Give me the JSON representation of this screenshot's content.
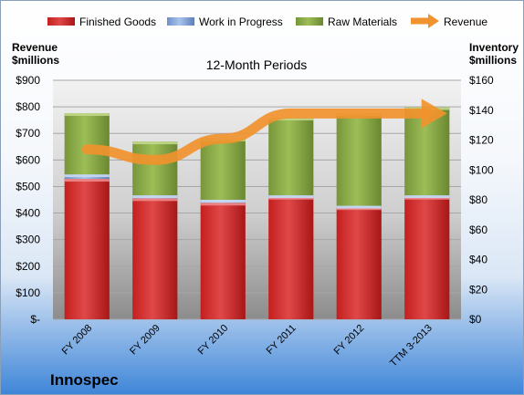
{
  "chart_data": {
    "type": "bar",
    "stacked": true,
    "title": "12-Month Periods",
    "brand": "Innospec",
    "categories": [
      "FY 2008",
      "FY 2009",
      "FY 2010",
      "FY 2011",
      "FY 2012",
      "TTM 3-2013"
    ],
    "left_axis": {
      "label_lines": [
        "Revenue",
        "$millions"
      ],
      "ticks": [
        "$-",
        "$100",
        "$200",
        "$300",
        "$400",
        "$500",
        "$600",
        "$700",
        "$800",
        "$900"
      ],
      "ylim": [
        0,
        900
      ]
    },
    "right_axis": {
      "label_lines": [
        "Inventory",
        "$millions"
      ],
      "ticks": [
        "$0",
        "$20",
        "$40",
        "$60",
        "$80",
        "$100",
        "$120",
        "$140",
        "$160"
      ],
      "ylim": [
        0,
        160
      ]
    },
    "series": [
      {
        "name": "Finished Goods",
        "axis": "right",
        "color": "#d63a3a",
        "values": [
          94,
          81,
          78,
          82,
          75,
          82
        ]
      },
      {
        "name": "Work in Progress",
        "axis": "right",
        "color": "#8fb0e0",
        "values": [
          3,
          2,
          2,
          1,
          1,
          1
        ]
      },
      {
        "name": "Raw Materials",
        "axis": "right",
        "color": "#8fb04a",
        "values": [
          41,
          36,
          41,
          52,
          62,
          59
        ]
      },
      {
        "name": "Revenue",
        "axis": "left",
        "type": "line",
        "color": "#f0922e",
        "values": [
          640,
          600,
          680,
          775,
          775,
          775
        ]
      }
    ],
    "legend_position": "top",
    "grid": true
  }
}
